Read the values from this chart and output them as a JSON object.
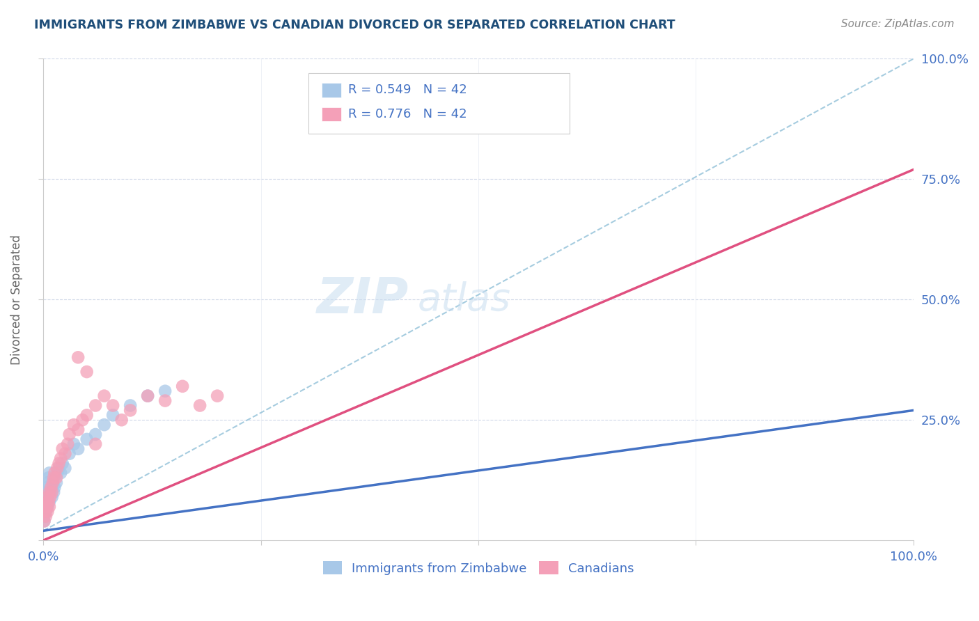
{
  "title": "IMMIGRANTS FROM ZIMBABWE VS CANADIAN DIVORCED OR SEPARATED CORRELATION CHART",
  "source": "Source: ZipAtlas.com",
  "ylabel": "Divorced or Separated",
  "xlim": [
    0,
    1
  ],
  "ylim": [
    0,
    1
  ],
  "legend_R1": "R = 0.549",
  "legend_N1": "N = 42",
  "legend_R2": "R = 0.776",
  "legend_N2": "N = 42",
  "color_blue": "#a8c8e8",
  "color_pink": "#f4a0b8",
  "color_blue_line": "#4472c4",
  "color_pink_line": "#e05080",
  "color_dashed": "#90c0d8",
  "watermark_color": "#c8ddf0",
  "title_color": "#1f4e79",
  "axis_label_color": "#4472c4",
  "blue_scatter_x": [
    0.001,
    0.001,
    0.002,
    0.002,
    0.003,
    0.003,
    0.004,
    0.004,
    0.005,
    0.005,
    0.006,
    0.006,
    0.007,
    0.007,
    0.008,
    0.009,
    0.01,
    0.011,
    0.012,
    0.013,
    0.015,
    0.016,
    0.018,
    0.02,
    0.022,
    0.025,
    0.03,
    0.035,
    0.04,
    0.05,
    0.06,
    0.07,
    0.08,
    0.1,
    0.12,
    0.14,
    0.001,
    0.002,
    0.003,
    0.003,
    0.004,
    0.001
  ],
  "blue_scatter_y": [
    0.05,
    0.08,
    0.06,
    0.09,
    0.07,
    0.1,
    0.08,
    0.11,
    0.07,
    0.12,
    0.09,
    0.13,
    0.08,
    0.14,
    0.1,
    0.11,
    0.09,
    0.12,
    0.1,
    0.11,
    0.12,
    0.14,
    0.15,
    0.14,
    0.16,
    0.15,
    0.18,
    0.2,
    0.19,
    0.21,
    0.22,
    0.24,
    0.26,
    0.28,
    0.3,
    0.31,
    0.06,
    0.07,
    0.06,
    0.08,
    0.07,
    0.04
  ],
  "pink_scatter_x": [
    0.001,
    0.001,
    0.002,
    0.003,
    0.003,
    0.004,
    0.005,
    0.005,
    0.006,
    0.007,
    0.007,
    0.008,
    0.009,
    0.01,
    0.011,
    0.012,
    0.013,
    0.015,
    0.016,
    0.018,
    0.02,
    0.022,
    0.025,
    0.028,
    0.03,
    0.035,
    0.04,
    0.045,
    0.05,
    0.06,
    0.07,
    0.08,
    0.09,
    0.1,
    0.12,
    0.14,
    0.16,
    0.18,
    0.2,
    0.04,
    0.05,
    0.06
  ],
  "pink_scatter_y": [
    0.04,
    0.07,
    0.06,
    0.05,
    0.08,
    0.07,
    0.06,
    0.09,
    0.08,
    0.07,
    0.1,
    0.09,
    0.11,
    0.1,
    0.12,
    0.13,
    0.14,
    0.13,
    0.15,
    0.16,
    0.17,
    0.19,
    0.18,
    0.2,
    0.22,
    0.24,
    0.23,
    0.25,
    0.26,
    0.28,
    0.3,
    0.28,
    0.25,
    0.27,
    0.3,
    0.29,
    0.32,
    0.28,
    0.3,
    0.38,
    0.35,
    0.2
  ],
  "blue_line_x0": 0.0,
  "blue_line_y0": 0.02,
  "blue_line_x1": 1.0,
  "blue_line_y1": 0.27,
  "pink_line_x0": 0.0,
  "pink_line_y0": 0.0,
  "pink_line_x1": 1.0,
  "pink_line_y1": 0.77,
  "dash_line_x0": 0.0,
  "dash_line_y0": 0.02,
  "dash_line_x1": 1.0,
  "dash_line_y1": 1.0
}
